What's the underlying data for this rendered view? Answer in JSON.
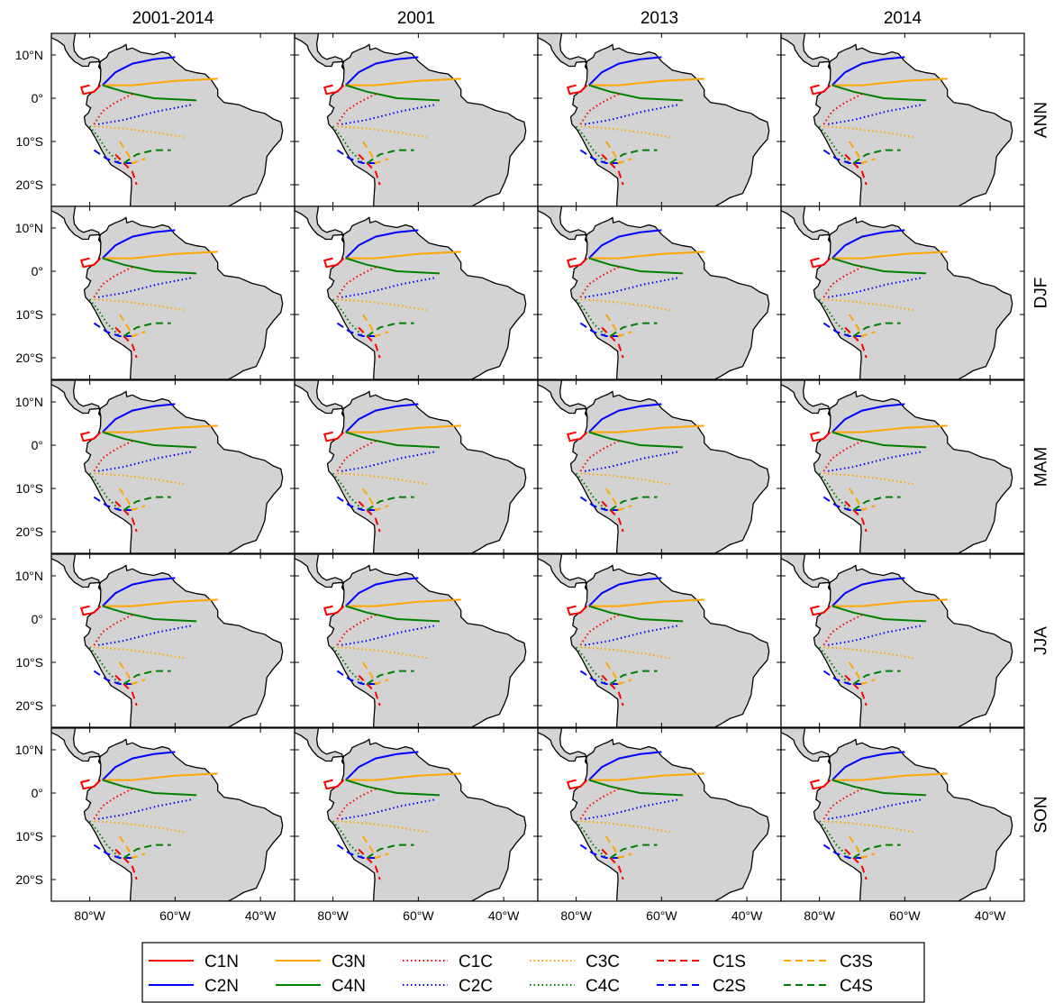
{
  "columns": [
    "2001-2014",
    "2001",
    "2013",
    "2014"
  ],
  "rows": [
    "ANN",
    "DJF",
    "MAM",
    "JJA",
    "SON"
  ],
  "lat_ticks": [
    "10°N",
    "0°",
    "10°S",
    "20°S"
  ],
  "lon_ticks": [
    "80°W",
    "60°W",
    "40°W"
  ],
  "map_extent": {
    "lon_min": -89,
    "lon_max": -32,
    "lat_min": -25,
    "lat_max": 15
  },
  "colors": {
    "land": "#d3d3d3",
    "coast": "#000000",
    "C1": "#ff0000",
    "C2": "#0000ff",
    "C3": "#ffa500",
    "C4": "#008000"
  },
  "legend": [
    {
      "label": "C1N",
      "color": "red",
      "style": "solid"
    },
    {
      "label": "C2N",
      "color": "blue",
      "style": "solid"
    },
    {
      "label": "C3N",
      "color": "orange",
      "style": "solid"
    },
    {
      "label": "C4N",
      "color": "green",
      "style": "solid"
    },
    {
      "label": "C1C",
      "color": "red",
      "style": "dotted"
    },
    {
      "label": "C2C",
      "color": "blue",
      "style": "dotted"
    },
    {
      "label": "C3C",
      "color": "orange",
      "style": "dotted"
    },
    {
      "label": "C4C",
      "color": "green",
      "style": "dotted"
    },
    {
      "label": "C1S",
      "color": "red",
      "style": "dashed"
    },
    {
      "label": "C2S",
      "color": "blue",
      "style": "dashed"
    },
    {
      "label": "C3S",
      "color": "orange",
      "style": "dashed"
    },
    {
      "label": "C4S",
      "color": "green",
      "style": "dashed"
    }
  ]
}
